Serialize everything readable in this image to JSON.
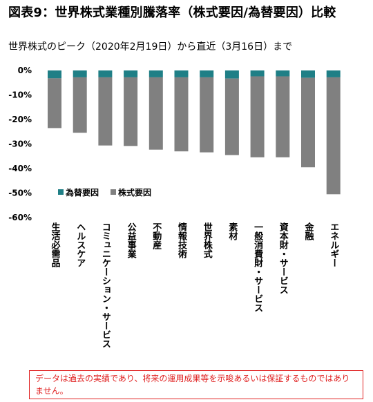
{
  "chart_data": {
    "type": "bar",
    "stacked": true,
    "title": "図表9：世界株式業種別騰落率（株式要因/為替要因）比較",
    "subtitle": "世界株式のピーク（2020年2月19日）から直近（3月16日）まで",
    "categories": [
      "生活必需品",
      "ヘルスケア",
      "コミュニケーション・サービス",
      "公益事業",
      "不動産",
      "情報技術",
      "世界株式",
      "素材",
      "一般消費財・サービス",
      "資本財・サービス",
      "金融",
      "エネルギー"
    ],
    "series": [
      {
        "name": "為替要因",
        "color": "#1f7f86",
        "values": [
          -3.2,
          -2.8,
          -2.8,
          -2.8,
          -2.8,
          -2.8,
          -2.8,
          -3.3,
          -2.4,
          -2.4,
          -3.0,
          -2.8
        ]
      },
      {
        "name": "株式要因",
        "color": "#808080",
        "values": [
          -20.3,
          -22.6,
          -27.8,
          -28.0,
          -29.5,
          -30.2,
          -30.6,
          -31.2,
          -33.0,
          -33.0,
          -36.5,
          -47.7
        ]
      }
    ],
    "y_ticks": [
      "0%",
      "-10%",
      "-20%",
      "-30%",
      "-40%",
      "-50%",
      "-60%"
    ],
    "ylim": [
      -60,
      0
    ],
    "grid": false,
    "legend_position": "bottom-left inside"
  },
  "disclaimer": "データは過去の実績であり、将来の運用成果等を示唆あるいは保証するものではありません。"
}
